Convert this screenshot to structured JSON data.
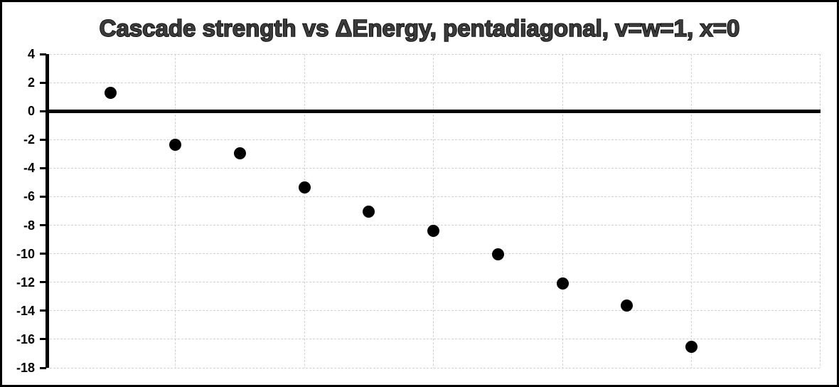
{
  "title": "Cascade strength vs ΔEnergy, pentadiagonal, v=w=1, x=0",
  "colors": {
    "background": "#ffffff",
    "border": "#000000",
    "title_fill": "#3b3b3b",
    "title_outline": "#000000",
    "gridline": "#d2d2d2",
    "axis": "#000000",
    "tick_label": "#000000",
    "marker": "#000000"
  },
  "chart_data": {
    "type": "scatter",
    "title": "Cascade strength vs ΔEnergy, pentadiagonal, v=w=1, x=0",
    "xlabel": "",
    "ylabel": "",
    "x": [
      1,
      2,
      3,
      4,
      5,
      6,
      7,
      8,
      9,
      10
    ],
    "y": [
      1.3,
      -2.35,
      -2.95,
      -5.35,
      -7.05,
      -8.4,
      -10.05,
      -12.1,
      -13.65,
      -16.55
    ],
    "xlim": [
      0,
      12
    ],
    "ylim": [
      -18,
      4
    ],
    "y_ticks": [
      4,
      2,
      0,
      -2,
      -4,
      -6,
      -8,
      -10,
      -12,
      -14,
      -16,
      -18
    ],
    "y_tick_labels": [
      "4",
      "2",
      "0",
      "-2",
      "-4",
      "-6",
      "-8",
      "-10",
      "-12",
      "-14",
      "-16",
      "-18"
    ],
    "x_tick_labels": [],
    "x_gridlines": [
      2,
      4,
      6,
      8,
      10,
      12
    ],
    "grid": true,
    "gridline_style": "dashed",
    "legend": false,
    "marker": "filled-circle",
    "zero_line": true
  }
}
